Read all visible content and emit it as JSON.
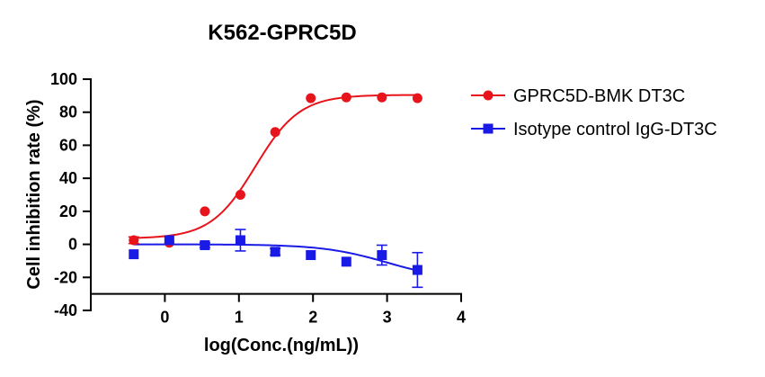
{
  "chart_data": {
    "type": "scatter",
    "title": "K562-GPRC5D",
    "xlabel": "log(Conc.(ng/mL))",
    "ylabel": "Cell inhibition rate (%)",
    "xlim": [
      -1,
      4
    ],
    "ylim": [
      -40,
      100
    ],
    "x_ticks": [
      0,
      1,
      2,
      3,
      4
    ],
    "y_ticks": [
      -40,
      -20,
      0,
      20,
      40,
      60,
      80,
      100
    ],
    "grid": false,
    "legend_position": "right",
    "series": [
      {
        "name": "GPRC5D-BMK DT3C",
        "color": "#e8141b",
        "marker": "circle",
        "points": [
          {
            "x": -0.42,
            "y": 2.5,
            "err": 2.0
          },
          {
            "x": 0.06,
            "y": 1.0,
            "err": 0
          },
          {
            "x": 0.54,
            "y": 20.0,
            "err": 0
          },
          {
            "x": 1.02,
            "y": 30.0,
            "err": 0
          },
          {
            "x": 1.49,
            "y": 68.0,
            "err": 0
          },
          {
            "x": 1.97,
            "y": 88.5,
            "err": 0
          },
          {
            "x": 2.45,
            "y": 89.0,
            "err": 0
          },
          {
            "x": 2.93,
            "y": 89.0,
            "err": 0
          },
          {
            "x": 3.41,
            "y": 88.5,
            "err": 0
          }
        ],
        "curve": {
          "model": "4PL",
          "bottom": 3.5,
          "top": 90.5,
          "logEC50": 1.22,
          "hill": 1.45
        }
      },
      {
        "name": "Isotype control IgG-DT3C",
        "color": "#1a1ae6",
        "marker": "square",
        "points": [
          {
            "x": -0.42,
            "y": -6.0,
            "err": 0
          },
          {
            "x": 0.06,
            "y": 2.5,
            "err": 0
          },
          {
            "x": 0.54,
            "y": -0.5,
            "err": 1.5
          },
          {
            "x": 1.02,
            "y": 2.5,
            "err": 6.5
          },
          {
            "x": 1.49,
            "y": -4.5,
            "err": 2.0
          },
          {
            "x": 1.97,
            "y": -6.5,
            "err": 0
          },
          {
            "x": 2.45,
            "y": -10.5,
            "err": 0
          },
          {
            "x": 2.93,
            "y": -6.5,
            "err": 6.0
          },
          {
            "x": 3.41,
            "y": -15.5,
            "err": 10.5
          }
        ],
        "curve": {
          "model": "4PL",
          "bottom": 0.0,
          "top": -22.0,
          "logEC50": 3.0,
          "hill": 1.0
        }
      }
    ]
  }
}
